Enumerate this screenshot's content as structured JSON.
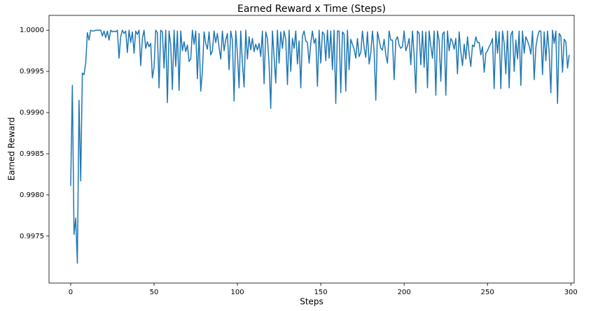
{
  "chart_data": {
    "type": "line",
    "title": "Earned Reward x Time (Steps)",
    "xlabel": "Steps",
    "ylabel": "Earned Reward",
    "xlim": [
      -13,
      302
    ],
    "xticks": [
      0,
      50,
      100,
      150,
      200,
      250,
      300
    ],
    "ylim": [
      0.99693,
      1.00018
    ],
    "yticks": [
      0.9975,
      {
        "value": 0.998,
        "label": "0.9980"
      },
      0.9985,
      {
        "value": 0.999,
        "label": "0.9990"
      },
      0.9995,
      {
        "value": 1,
        "label": "1.0000"
      }
    ],
    "grid": false,
    "x": [
      0,
      1,
      2,
      3,
      4,
      5,
      6,
      7,
      8,
      9,
      10,
      11,
      12,
      13,
      14,
      15,
      16,
      17,
      18,
      19,
      20,
      21,
      22,
      23,
      24,
      25,
      26,
      27,
      28,
      29,
      30,
      31,
      32,
      33,
      34,
      35,
      36,
      37,
      38,
      39,
      40,
      41,
      42,
      43,
      44,
      45,
      46,
      47,
      48,
      49,
      50,
      51,
      52,
      53,
      54,
      55,
      56,
      57,
      58,
      59,
      60,
      61,
      62,
      63,
      64,
      65,
      66,
      67,
      68,
      69,
      70,
      71,
      72,
      73,
      74,
      75,
      76,
      77,
      78,
      79,
      80,
      81,
      82,
      83,
      84,
      85,
      86,
      87,
      88,
      89,
      90,
      91,
      92,
      93,
      94,
      95,
      96,
      97,
      98,
      99,
      100,
      101,
      102,
      103,
      104,
      105,
      106,
      107,
      108,
      109,
      110,
      111,
      112,
      113,
      114,
      115,
      116,
      117,
      118,
      119,
      120,
      121,
      122,
      123,
      124,
      125,
      126,
      127,
      128,
      129,
      130,
      131,
      132,
      133,
      134,
      135,
      136,
      137,
      138,
      139,
      140,
      141,
      142,
      143,
      144,
      145,
      146,
      147,
      148,
      149,
      150,
      151,
      152,
      153,
      154,
      155,
      156,
      157,
      158,
      159,
      160,
      161,
      162,
      163,
      164,
      165,
      166,
      167,
      168,
      169,
      170,
      171,
      172,
      173,
      174,
      175,
      176,
      177,
      178,
      179,
      180,
      181,
      182,
      183,
      184,
      185,
      186,
      187,
      188,
      189,
      190,
      191,
      192,
      193,
      194,
      195,
      196,
      197,
      198,
      199,
      200,
      201,
      202,
      203,
      204,
      205,
      206,
      207,
      208,
      209,
      210,
      211,
      212,
      213,
      214,
      215,
      216,
      217,
      218,
      219,
      220,
      221,
      222,
      223,
      224,
      225,
      226,
      227,
      228,
      229,
      230,
      231,
      232,
      233,
      234,
      235,
      236,
      237,
      238,
      239,
      240,
      241,
      242,
      243,
      244,
      245,
      246,
      247,
      248,
      249,
      250,
      251,
      252,
      253,
      254,
      255,
      256,
      257,
      258,
      259,
      260,
      261,
      262,
      263,
      264,
      265,
      266,
      267,
      268,
      269,
      270,
      271,
      272,
      273,
      274,
      275,
      276,
      277,
      278,
      279,
      280,
      281,
      282,
      283,
      284,
      285,
      286,
      287,
      288,
      289,
      290,
      291,
      292,
      293,
      294,
      295,
      296,
      297,
      298,
      299
    ],
    "series": [
      {
        "color": "#1f77b4",
        "values": [
          0.99811,
          0.99933,
          0.99752,
          0.99772,
          0.99717,
          0.99915,
          0.99817,
          0.99948,
          0.99946,
          0.9996,
          0.99997,
          0.99988,
          1.0,
          0.99999,
          0.99999,
          1.0,
          1.0,
          1.0,
          1.0,
          0.99993,
          0.99999,
          0.99991,
          0.99999,
          0.99988,
          1.0,
          0.99998,
          0.99999,
          0.99998,
          1.0,
          0.99966,
          0.99992,
          1.0,
          0.99996,
          0.99999,
          0.99973,
          1.0,
          0.99985,
          0.99998,
          0.99972,
          0.99999,
          0.99995,
          1.0,
          0.99957,
          0.9999,
          1.0,
          0.99978,
          0.99986,
          0.9998,
          0.99984,
          0.99942,
          0.99955,
          1.0,
          0.99997,
          0.9993,
          1.0,
          0.99998,
          0.99954,
          1.0,
          0.99912,
          0.99999,
          0.99982,
          0.99928,
          1.0,
          0.99956,
          0.99999,
          0.99927,
          0.99999,
          0.99975,
          0.99986,
          0.99974,
          0.99982,
          0.99962,
          0.99965,
          1.0,
          0.99983,
          0.99999,
          0.99941,
          0.99996,
          0.99926,
          0.9995,
          0.99998,
          0.99984,
          0.99977,
          0.99998,
          0.9997,
          0.99975,
          0.99999,
          0.99985,
          0.99996,
          0.99979,
          0.99965,
          0.99999,
          0.99975,
          0.99988,
          0.99996,
          0.99952,
          0.99999,
          0.99988,
          0.99914,
          0.99999,
          0.99972,
          0.9993,
          0.99999,
          0.9996,
          0.99931,
          1.0,
          0.99965,
          0.99992,
          0.99976,
          0.9999,
          0.99974,
          0.99983,
          0.99976,
          0.99984,
          0.99968,
          0.99999,
          0.99935,
          0.99998,
          0.9999,
          0.99959,
          0.99905,
          0.99999,
          0.99968,
          0.99936,
          1.0,
          0.9996,
          0.99998,
          0.99978,
          0.99999,
          0.99989,
          0.99934,
          1.0,
          0.9995,
          0.9999,
          0.99978,
          0.99999,
          0.99959,
          0.99987,
          0.9993,
          0.99993,
          0.99999,
          0.99987,
          0.99985,
          0.9996,
          0.99984,
          0.99999,
          0.99984,
          0.9999,
          0.99932,
          1.0,
          0.9996,
          0.99998,
          0.99995,
          0.99963,
          1.0,
          0.99966,
          0.99999,
          0.99952,
          1.0,
          0.99911,
          0.99999,
          0.99999,
          0.99924,
          0.99998,
          0.99995,
          0.99926,
          1.0,
          0.99952,
          0.99989,
          0.99983,
          0.99977,
          0.99966,
          0.9999,
          0.99968,
          0.99973,
          0.99999,
          0.99979,
          0.99967,
          0.99998,
          0.99959,
          0.99972,
          0.99999,
          0.99975,
          0.99915,
          0.99998,
          0.99988,
          0.99978,
          0.99976,
          0.99989,
          0.9997,
          0.9996,
          0.99999,
          0.99988,
          0.99988,
          0.9994,
          0.99988,
          0.99992,
          0.99982,
          0.99978,
          0.9998,
          0.99999,
          0.99975,
          0.99981,
          0.9999,
          0.99958,
          0.99999,
          0.9997,
          0.99924,
          0.99999,
          0.99996,
          0.99958,
          0.99999,
          0.99955,
          0.99998,
          0.9993,
          0.99999,
          0.99981,
          0.99966,
          0.99999,
          0.99921,
          0.99999,
          0.99987,
          0.99938,
          0.99995,
          0.99998,
          0.99921,
          0.99999,
          0.99975,
          0.9999,
          0.99986,
          0.99977,
          0.9999,
          0.99947,
          0.99998,
          0.99974,
          0.99957,
          0.99983,
          0.99965,
          0.99992,
          0.99971,
          0.99956,
          0.99982,
          0.9998,
          0.99992,
          0.99985,
          0.99985,
          0.9997,
          0.9998,
          0.99949,
          0.99972,
          0.99975,
          0.9998,
          0.99984,
          0.9999,
          0.99929,
          0.99999,
          0.99972,
          0.99998,
          0.99929,
          0.99999,
          0.99984,
          0.99947,
          0.99999,
          0.9993,
          0.99994,
          0.99999,
          0.9995,
          0.99988,
          0.99965,
          0.99999,
          0.99933,
          0.99999,
          0.99972,
          0.99992,
          0.99987,
          0.99981,
          0.99971,
          0.99999,
          0.9994,
          0.99979,
          0.99992,
          0.99999,
          0.99999,
          0.99946,
          0.99998,
          0.99963,
          0.99999,
          0.99973,
          0.99924,
          1.0,
          0.99984,
          0.99999,
          0.99911,
          0.99996,
          0.99993,
          0.99949,
          0.99989,
          0.99986,
          0.99954,
          0.9997
        ]
      }
    ]
  }
}
